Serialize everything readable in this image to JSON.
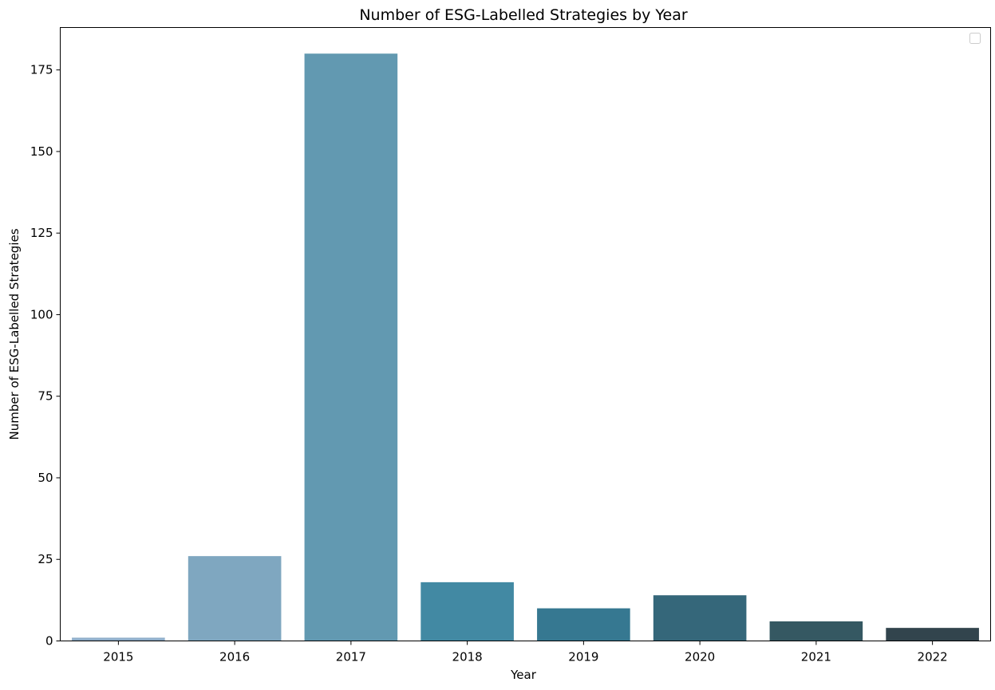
{
  "chart_data": {
    "type": "bar",
    "title": "Number of ESG-Labelled Strategies by Year",
    "xlabel": "Year",
    "ylabel": "Number of ESG-Labelled Strategies",
    "categories": [
      "2015",
      "2016",
      "2017",
      "2018",
      "2019",
      "2020",
      "2021",
      "2022"
    ],
    "values": [
      1,
      26,
      180,
      18,
      10,
      14,
      6,
      4
    ],
    "colors": [
      "#90afcb",
      "#7fa7c0",
      "#6299b1",
      "#4289a3",
      "#367891",
      "#35677a",
      "#355862",
      "#32444d"
    ],
    "ylim": [
      0,
      188
    ],
    "yticks": [
      "0",
      "25",
      "50",
      "75",
      "100",
      "125",
      "150",
      "175"
    ],
    "grid": false,
    "legend": "top-right, empty"
  }
}
